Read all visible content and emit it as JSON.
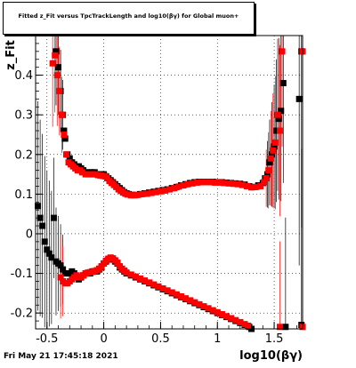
{
  "title": "Fitted z_Fit versus TpcTrackLength and log10(βγ) for Global muon+",
  "timestamp": "Fri May 21 17:45:18 2021",
  "chart_data": {
    "type": "scatter",
    "title": "Fitted z_Fit versus TpcTrackLength and log10(βγ) for Global muon+",
    "xlabel": "log10(βγ)",
    "ylabel": "z_Fit",
    "xlim": [
      -0.6,
      1.75
    ],
    "ylim": [
      -0.24,
      0.5
    ],
    "xticks": [
      -0.5,
      0,
      0.5,
      1,
      1.5
    ],
    "xtick_labels": [
      "-0.5",
      "0",
      "0.5",
      "1",
      "1.5"
    ],
    "yticks": [
      -0.2,
      -0.1,
      0,
      0.1,
      0.2,
      0.3,
      0.4
    ],
    "ytick_labels": [
      "-0.2",
      "-0.1",
      "0",
      "0.1",
      "0.2",
      "0.3",
      "0.4"
    ],
    "grid": true,
    "series": [
      {
        "color": "#000000",
        "upper_band": [
          [
            -0.42,
            0.46
          ],
          [
            -0.4,
            0.42
          ],
          [
            -0.38,
            0.36
          ],
          [
            -0.36,
            0.3
          ],
          [
            -0.35,
            0.26
          ],
          [
            -0.34,
            0.24
          ],
          [
            -0.32,
            0.2
          ],
          [
            -0.3,
            0.19
          ],
          [
            -0.28,
            0.18
          ],
          [
            -0.26,
            0.175
          ],
          [
            -0.24,
            0.17
          ],
          [
            -0.22,
            0.17
          ],
          [
            -0.2,
            0.165
          ],
          [
            -0.18,
            0.16
          ],
          [
            -0.15,
            0.155
          ],
          [
            -0.12,
            0.155
          ],
          [
            -0.1,
            0.155
          ],
          [
            -0.08,
            0.155
          ],
          [
            -0.06,
            0.15
          ],
          [
            -0.04,
            0.15
          ],
          [
            -0.02,
            0.15
          ],
          [
            0.0,
            0.15
          ],
          [
            0.02,
            0.145
          ],
          [
            0.04,
            0.14
          ],
          [
            0.06,
            0.135
          ],
          [
            0.08,
            0.13
          ],
          [
            0.1,
            0.125
          ],
          [
            0.12,
            0.12
          ],
          [
            0.14,
            0.115
          ],
          [
            0.16,
            0.11
          ],
          [
            0.18,
            0.105
          ],
          [
            0.2,
            0.102
          ],
          [
            0.22,
            0.1
          ],
          [
            0.25,
            0.098
          ],
          [
            0.28,
            0.098
          ],
          [
            0.32,
            0.1
          ],
          [
            0.36,
            0.102
          ],
          [
            0.4,
            0.104
          ],
          [
            0.44,
            0.106
          ],
          [
            0.48,
            0.108
          ],
          [
            0.52,
            0.11
          ],
          [
            0.56,
            0.112
          ],
          [
            0.6,
            0.115
          ],
          [
            0.64,
            0.118
          ],
          [
            0.68,
            0.122
          ],
          [
            0.72,
            0.125
          ],
          [
            0.76,
            0.128
          ],
          [
            0.8,
            0.13
          ],
          [
            0.84,
            0.131
          ],
          [
            0.88,
            0.131
          ],
          [
            0.92,
            0.131
          ],
          [
            0.96,
            0.131
          ],
          [
            1.0,
            0.13
          ],
          [
            1.04,
            0.13
          ],
          [
            1.08,
            0.129
          ],
          [
            1.12,
            0.128
          ],
          [
            1.16,
            0.127
          ],
          [
            1.2,
            0.126
          ],
          [
            1.24,
            0.124
          ],
          [
            1.28,
            0.12
          ],
          [
            1.32,
            0.118
          ],
          [
            1.36,
            0.122
          ],
          [
            1.4,
            0.128
          ],
          [
            1.42,
            0.14
          ],
          [
            1.44,
            0.15
          ],
          [
            1.46,
            0.18
          ],
          [
            1.48,
            0.2
          ],
          [
            1.5,
            0.22
          ],
          [
            1.52,
            0.26
          ],
          [
            1.54,
            0.29
          ],
          [
            1.56,
            0.31
          ],
          [
            1.58,
            0.38
          ],
          [
            1.72,
            0.34
          ],
          [
            1.74,
            0.46
          ]
        ],
        "lower_band": [
          [
            -0.58,
            0.07
          ],
          [
            -0.56,
            0.04
          ],
          [
            -0.54,
            0.02
          ],
          [
            -0.52,
            -0.02
          ],
          [
            -0.5,
            -0.04
          ],
          [
            -0.48,
            -0.05
          ],
          [
            -0.46,
            -0.06
          ],
          [
            -0.44,
            0.04
          ],
          [
            -0.42,
            -0.07
          ],
          [
            -0.4,
            -0.075
          ],
          [
            -0.38,
            -0.08
          ],
          [
            -0.36,
            -0.09
          ],
          [
            -0.34,
            -0.1
          ],
          [
            -0.32,
            -0.1
          ],
          [
            -0.3,
            -0.1
          ],
          [
            -0.28,
            -0.095
          ],
          [
            -0.26,
            -0.1
          ],
          [
            -0.24,
            -0.11
          ],
          [
            -0.22,
            -0.115
          ],
          [
            -0.2,
            -0.11
          ],
          [
            -0.18,
            -0.105
          ],
          [
            -0.16,
            -0.1
          ],
          [
            -0.14,
            -0.1
          ],
          [
            -0.12,
            -0.1
          ],
          [
            -0.1,
            -0.095
          ],
          [
            -0.08,
            -0.095
          ],
          [
            -0.06,
            -0.095
          ],
          [
            -0.04,
            -0.09
          ],
          [
            -0.02,
            -0.085
          ],
          [
            0.0,
            -0.075
          ],
          [
            0.02,
            -0.07
          ],
          [
            0.04,
            -0.065
          ],
          [
            0.06,
            -0.062
          ],
          [
            0.08,
            -0.065
          ],
          [
            0.1,
            -0.07
          ],
          [
            0.12,
            -0.075
          ],
          [
            0.14,
            -0.085
          ],
          [
            0.16,
            -0.09
          ],
          [
            0.18,
            -0.095
          ],
          [
            0.2,
            -0.1
          ],
          [
            0.24,
            -0.105
          ],
          [
            0.28,
            -0.11
          ],
          [
            0.32,
            -0.115
          ],
          [
            0.36,
            -0.12
          ],
          [
            0.4,
            -0.125
          ],
          [
            0.44,
            -0.13
          ],
          [
            0.48,
            -0.135
          ],
          [
            0.52,
            -0.14
          ],
          [
            0.56,
            -0.145
          ],
          [
            0.6,
            -0.15
          ],
          [
            0.64,
            -0.155
          ],
          [
            0.68,
            -0.16
          ],
          [
            0.72,
            -0.165
          ],
          [
            0.76,
            -0.17
          ],
          [
            0.8,
            -0.175
          ],
          [
            0.84,
            -0.18
          ],
          [
            0.88,
            -0.185
          ],
          [
            0.92,
            -0.19
          ],
          [
            0.96,
            -0.195
          ],
          [
            1.0,
            -0.2
          ],
          [
            1.04,
            -0.205
          ],
          [
            1.08,
            -0.21
          ],
          [
            1.12,
            -0.215
          ],
          [
            1.16,
            -0.22
          ],
          [
            1.2,
            -0.225
          ],
          [
            1.24,
            -0.23
          ],
          [
            1.28,
            -0.235
          ],
          [
            1.3,
            -0.24
          ],
          [
            1.6,
            -0.235
          ],
          [
            1.74,
            -0.23
          ]
        ]
      },
      {
        "color": "#ff0000",
        "upper_band": [
          [
            -0.45,
            0.43
          ],
          [
            -0.43,
            0.45
          ],
          [
            -0.41,
            0.4
          ],
          [
            -0.39,
            0.36
          ],
          [
            -0.37,
            0.3
          ],
          [
            -0.35,
            0.25
          ],
          [
            -0.33,
            0.2
          ],
          [
            -0.31,
            0.18
          ],
          [
            -0.29,
            0.175
          ],
          [
            -0.27,
            0.17
          ],
          [
            -0.25,
            0.165
          ],
          [
            -0.23,
            0.16
          ],
          [
            -0.21,
            0.16
          ],
          [
            -0.19,
            0.155
          ],
          [
            -0.16,
            0.15
          ],
          [
            -0.13,
            0.15
          ],
          [
            -0.1,
            0.15
          ],
          [
            -0.08,
            0.15
          ],
          [
            -0.05,
            0.148
          ],
          [
            -0.03,
            0.147
          ],
          [
            -0.01,
            0.146
          ],
          [
            0.01,
            0.145
          ],
          [
            0.03,
            0.14
          ],
          [
            0.05,
            0.133
          ],
          [
            0.07,
            0.128
          ],
          [
            0.09,
            0.123
          ],
          [
            0.11,
            0.118
          ],
          [
            0.13,
            0.112
          ],
          [
            0.15,
            0.108
          ],
          [
            0.17,
            0.104
          ],
          [
            0.19,
            0.101
          ],
          [
            0.21,
            0.099
          ],
          [
            0.24,
            0.097
          ],
          [
            0.27,
            0.097
          ],
          [
            0.3,
            0.098
          ],
          [
            0.34,
            0.1
          ],
          [
            0.38,
            0.101
          ],
          [
            0.42,
            0.103
          ],
          [
            0.46,
            0.105
          ],
          [
            0.5,
            0.107
          ],
          [
            0.54,
            0.109
          ],
          [
            0.58,
            0.112
          ],
          [
            0.62,
            0.115
          ],
          [
            0.66,
            0.119
          ],
          [
            0.7,
            0.122
          ],
          [
            0.74,
            0.125
          ],
          [
            0.78,
            0.127
          ],
          [
            0.82,
            0.129
          ],
          [
            0.86,
            0.13
          ],
          [
            0.9,
            0.13
          ],
          [
            0.94,
            0.13
          ],
          [
            0.98,
            0.129
          ],
          [
            1.02,
            0.129
          ],
          [
            1.06,
            0.128
          ],
          [
            1.1,
            0.127
          ],
          [
            1.14,
            0.126
          ],
          [
            1.18,
            0.125
          ],
          [
            1.22,
            0.123
          ],
          [
            1.26,
            0.12
          ],
          [
            1.3,
            0.117
          ],
          [
            1.34,
            0.118
          ],
          [
            1.38,
            0.12
          ],
          [
            1.41,
            0.13
          ],
          [
            1.43,
            0.14
          ],
          [
            1.45,
            0.16
          ],
          [
            1.47,
            0.19
          ],
          [
            1.49,
            0.21
          ],
          [
            1.51,
            0.23
          ],
          [
            1.53,
            0.3
          ],
          [
            1.55,
            0.26
          ],
          [
            1.57,
            0.46
          ],
          [
            1.75,
            0.46
          ]
        ],
        "lower_band": [
          [
            -0.38,
            -0.11
          ],
          [
            -0.36,
            -0.12
          ],
          [
            -0.34,
            -0.125
          ],
          [
            -0.32,
            -0.125
          ],
          [
            -0.3,
            -0.12
          ],
          [
            -0.28,
            -0.115
          ],
          [
            -0.26,
            -0.11
          ],
          [
            -0.24,
            -0.105
          ],
          [
            -0.22,
            -0.11
          ],
          [
            -0.2,
            -0.108
          ],
          [
            -0.18,
            -0.105
          ],
          [
            -0.16,
            -0.1
          ],
          [
            -0.14,
            -0.098
          ],
          [
            -0.12,
            -0.097
          ],
          [
            -0.1,
            -0.096
          ],
          [
            -0.08,
            -0.094
          ],
          [
            -0.06,
            -0.092
          ],
          [
            -0.04,
            -0.088
          ],
          [
            -0.02,
            -0.082
          ],
          [
            0.0,
            -0.075
          ],
          [
            0.02,
            -0.068
          ],
          [
            0.04,
            -0.063
          ],
          [
            0.06,
            -0.06
          ],
          [
            0.08,
            -0.062
          ],
          [
            0.1,
            -0.067
          ],
          [
            0.12,
            -0.073
          ],
          [
            0.14,
            -0.082
          ],
          [
            0.16,
            -0.088
          ],
          [
            0.18,
            -0.093
          ],
          [
            0.2,
            -0.098
          ],
          [
            0.24,
            -0.103
          ],
          [
            0.28,
            -0.108
          ],
          [
            0.32,
            -0.113
          ],
          [
            0.36,
            -0.118
          ],
          [
            0.4,
            -0.123
          ],
          [
            0.44,
            -0.128
          ],
          [
            0.48,
            -0.133
          ],
          [
            0.52,
            -0.138
          ],
          [
            0.56,
            -0.143
          ],
          [
            0.6,
            -0.148
          ],
          [
            0.64,
            -0.153
          ],
          [
            0.68,
            -0.158
          ],
          [
            0.72,
            -0.163
          ],
          [
            0.76,
            -0.168
          ],
          [
            0.8,
            -0.173
          ],
          [
            0.84,
            -0.178
          ],
          [
            0.88,
            -0.183
          ],
          [
            0.92,
            -0.188
          ],
          [
            0.96,
            -0.193
          ],
          [
            1.0,
            -0.198
          ],
          [
            1.04,
            -0.203
          ],
          [
            1.08,
            -0.208
          ],
          [
            1.12,
            -0.213
          ],
          [
            1.16,
            -0.218
          ],
          [
            1.2,
            -0.223
          ],
          [
            1.24,
            -0.228
          ],
          [
            1.27,
            -0.232
          ],
          [
            1.55,
            -0.235
          ],
          [
            1.75,
            -0.235
          ]
        ]
      }
    ]
  }
}
